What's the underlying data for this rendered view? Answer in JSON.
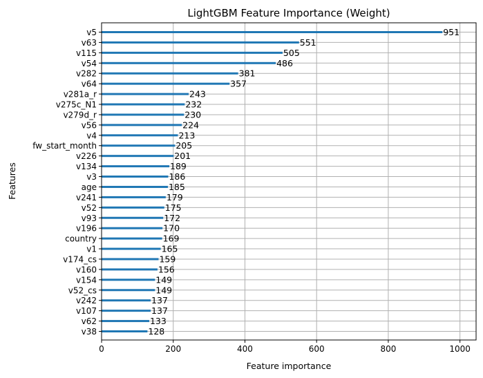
{
  "chart_data": {
    "type": "bar",
    "orientation": "horizontal",
    "title": "LightGBM Feature Importance (Weight)",
    "xlabel": "Feature importance",
    "ylabel": "Features",
    "xlim": [
      0,
      1045
    ],
    "xticks": [
      0,
      200,
      400,
      600,
      800,
      1000
    ],
    "grid": true,
    "categories": [
      "v5",
      "v63",
      "v115",
      "v54",
      "v282",
      "v64",
      "v281a_r",
      "v275c_N1",
      "v279d_r",
      "v56",
      "v4",
      "fw_start_month",
      "v226",
      "v134",
      "v3",
      "age",
      "v241",
      "v52",
      "v93",
      "v196",
      "country",
      "v1",
      "v174_cs",
      "v160",
      "v154",
      "v52_cs",
      "v242",
      "v107",
      "v62",
      "v38"
    ],
    "values": [
      951,
      551,
      505,
      486,
      381,
      357,
      243,
      232,
      230,
      224,
      213,
      205,
      201,
      189,
      186,
      185,
      179,
      175,
      172,
      170,
      169,
      165,
      159,
      156,
      149,
      149,
      137,
      137,
      133,
      128
    ],
    "bar_color": "#1f77b4",
    "grid_color": "#b0b0b0"
  }
}
